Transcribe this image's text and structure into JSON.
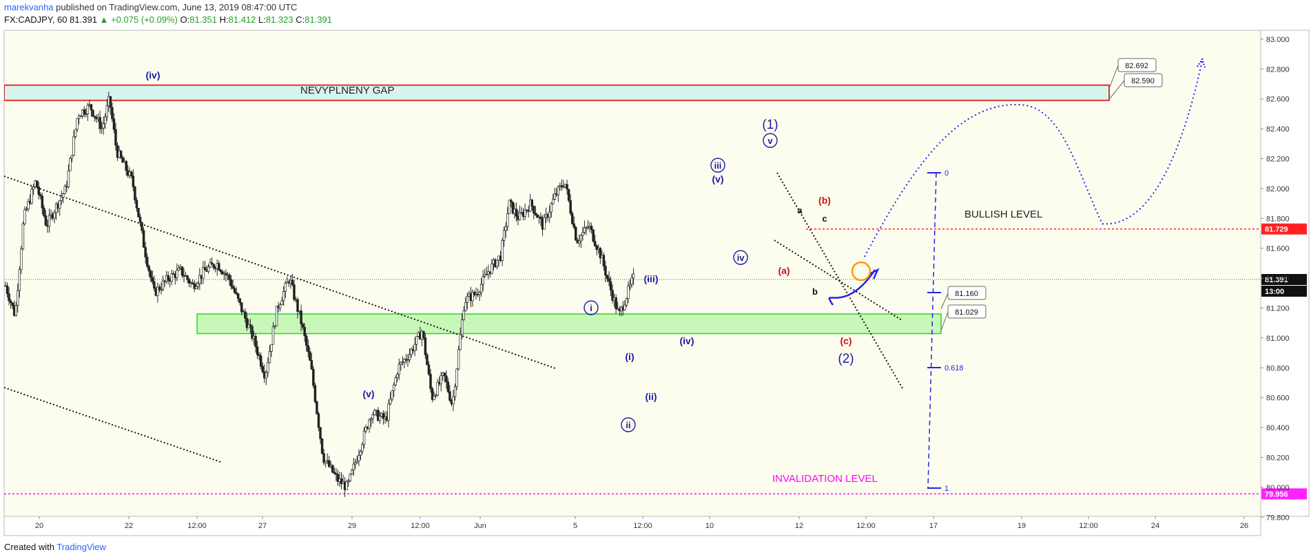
{
  "header": {
    "author": "marekvanha",
    "published": "published on TradingView.com, June 13, 2019 08:47:00 UTC",
    "symbol": "FX:CADJPY, 60",
    "last": "81.391",
    "change": "▲ +0.075 (+0.09%)",
    "o_label": "O:",
    "o": "81.351",
    "h_label": "H:",
    "h": "81.412",
    "l_label": "L:",
    "l": "81.323",
    "c_label": "C:",
    "c": "81.391"
  },
  "footer": {
    "created": "Created with",
    "brand": "TradingView"
  },
  "colors": {
    "chart_bg": "#fdfdef",
    "candle": "#222222",
    "wave_blue": "#1a1aa6",
    "wave_red": "#cc1111",
    "gap_fill": "#d6f4ee",
    "gap_border": "#e03030",
    "support_fill": "#b6f5a6",
    "support_border": "#33cc33",
    "bullish_line": "#ff2222",
    "invalidation": "#ff00ff",
    "projection": "#2222ee",
    "highlight_circle": "#ff9900"
  },
  "chart_data": {
    "type": "candlestick",
    "instrument": "FX:CADJPY",
    "timeframe": "60",
    "ylim": [
      79.7,
      83.05
    ],
    "y_ticks": [
      "83.000",
      "82.800",
      "82.600",
      "82.400",
      "82.200",
      "82.000",
      "81.800",
      "81.600",
      "81.400",
      "81.200",
      "81.000",
      "80.800",
      "80.600",
      "80.400",
      "80.200",
      "80.000",
      "79.800"
    ],
    "x_ticks": [
      "20",
      "22",
      "12:00",
      "27",
      "29",
      "12:00",
      "Jun",
      "5",
      "12:00",
      "10",
      "12",
      "12:00",
      "17",
      "19",
      "12:00",
      "24",
      "26"
    ],
    "price_path": [
      [
        0,
        81.35
      ],
      [
        0.8,
        81.15
      ],
      [
        1.5,
        81.8
      ],
      [
        2.5,
        82.05
      ],
      [
        3.4,
        81.75
      ],
      [
        4,
        81.85
      ],
      [
        5,
        82.0
      ],
      [
        6,
        82.5
      ],
      [
        7,
        82.55
      ],
      [
        8,
        82.4
      ],
      [
        8.6,
        82.6
      ],
      [
        9.2,
        82.25
      ],
      [
        10.5,
        82.05
      ],
      [
        11.5,
        81.6
      ],
      [
        12.3,
        81.3
      ],
      [
        13.5,
        81.4
      ],
      [
        14.5,
        81.45
      ],
      [
        15.5,
        81.35
      ],
      [
        16.5,
        81.45
      ],
      [
        17.5,
        81.5
      ],
      [
        18.5,
        81.4
      ],
      [
        19.5,
        81.2
      ],
      [
        20.5,
        81.0
      ],
      [
        21.5,
        80.75
      ],
      [
        22.5,
        81.2
      ],
      [
        23.5,
        81.4
      ],
      [
        24.5,
        81.1
      ],
      [
        25.3,
        80.8
      ],
      [
        26.3,
        80.2
      ],
      [
        27.5,
        80.05
      ],
      [
        28.3,
        80.0
      ],
      [
        29.5,
        80.3
      ],
      [
        30.3,
        80.5
      ],
      [
        31.5,
        80.45
      ],
      [
        32.5,
        80.8
      ],
      [
        33.5,
        80.9
      ],
      [
        34.5,
        81.05
      ],
      [
        35.3,
        80.6
      ],
      [
        36.3,
        80.75
      ],
      [
        37,
        80.55
      ],
      [
        38,
        81.25
      ],
      [
        39,
        81.3
      ],
      [
        40,
        81.45
      ],
      [
        41,
        81.55
      ],
      [
        41.7,
        81.9
      ],
      [
        42.5,
        81.8
      ],
      [
        43.5,
        81.9
      ],
      [
        44.5,
        81.75
      ],
      [
        45.5,
        81.95
      ],
      [
        46.3,
        82.05
      ],
      [
        47.3,
        81.65
      ],
      [
        48.3,
        81.75
      ],
      [
        49.3,
        81.55
      ],
      [
        50,
        81.35
      ],
      [
        50.8,
        81.15
      ],
      [
        51.5,
        81.3
      ],
      [
        52,
        81.4
      ]
    ],
    "annotations": {
      "gap_label": "NEVYPLNENY GAP",
      "bullish_label": "BULLISH LEVEL",
      "invalidation_label": "INVALIDATION LEVEL",
      "waves_blue": [
        "(iv)",
        "(v)",
        "(iii)",
        "(iv)",
        "(v)",
        "(1)",
        "v",
        "iii",
        "iv",
        "i",
        "ii",
        "(i)",
        "(ii)",
        "(2)"
      ],
      "waves_red": [
        "(a)",
        "(b)",
        "(c)"
      ],
      "waves_black": [
        "a",
        "b",
        "c"
      ],
      "fib_labels": [
        "0",
        "0.618",
        "1"
      ]
    },
    "price_tags": {
      "gap_top": "82.692",
      "gap_bottom": "82.590",
      "zone_top": "81.160",
      "zone_bottom": "81.029",
      "bullish": "81.729",
      "last": "81.391",
      "countdown": "13:00",
      "invalidation": "79.956"
    },
    "levels": {
      "gap": [
        82.59,
        82.692
      ],
      "support_zone": [
        81.029,
        81.16
      ],
      "bullish": 81.729,
      "invalidation": 79.956,
      "last": 81.391
    }
  }
}
